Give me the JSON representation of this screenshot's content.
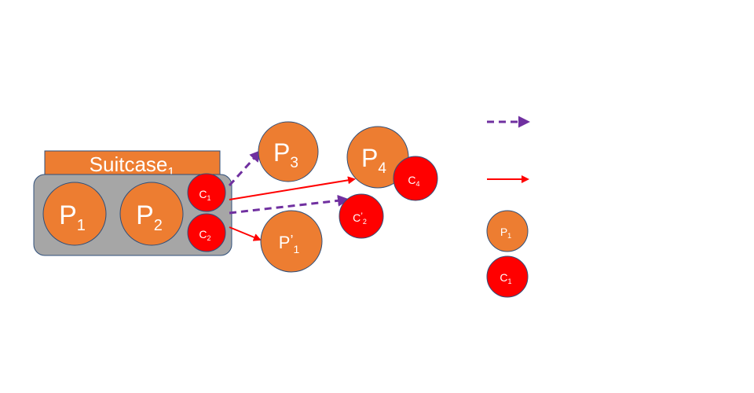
{
  "colors": {
    "orange": "#ED7D31",
    "red": "#FF0000",
    "purple": "#7030A0",
    "gray": "#A6A6A6",
    "outline": "#2F4F7A",
    "white": "#FFFFFF"
  },
  "suitcase": {
    "label": "Suitcase",
    "subscript": "1"
  },
  "nodes": {
    "p1": {
      "base": "P",
      "prime": "",
      "sub": "1"
    },
    "p2": {
      "base": "P",
      "prime": "",
      "sub": "2"
    },
    "c1": {
      "base": "C",
      "prime": "",
      "sub": "1"
    },
    "c2": {
      "base": "C",
      "prime": "",
      "sub": "2"
    },
    "p3": {
      "base": "P",
      "prime": "",
      "sub": "3"
    },
    "p4": {
      "base": "P",
      "prime": "",
      "sub": "4"
    },
    "c4": {
      "base": "C",
      "prime": "",
      "sub": "4"
    },
    "c2prime": {
      "base": "C",
      "prime": "’",
      "sub": "2"
    },
    "p1prime": {
      "base": "P",
      "prime": "’",
      "sub": "1"
    }
  },
  "legend": {
    "p1": {
      "base": "P",
      "sub": "1"
    },
    "c1": {
      "base": "C",
      "sub": "1"
    }
  }
}
